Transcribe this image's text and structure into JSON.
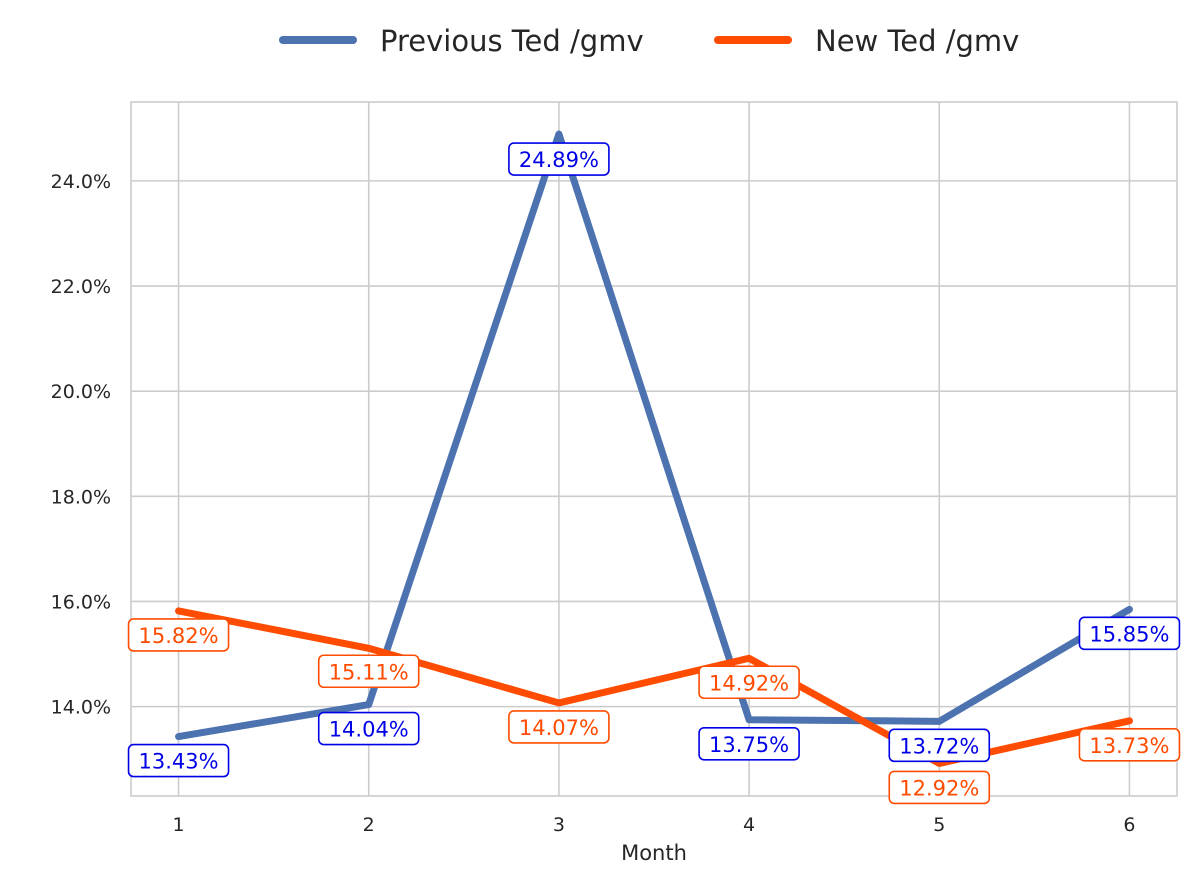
{
  "chart_data": {
    "type": "line",
    "xlabel": "Month",
    "ylabel": "",
    "x": [
      1,
      2,
      3,
      4,
      5,
      6
    ],
    "x_tick_labels": [
      "1",
      "2",
      "3",
      "4",
      "5",
      "6"
    ],
    "y_ticks": [
      14.0,
      16.0,
      18.0,
      20.0,
      22.0,
      24.0
    ],
    "y_tick_labels": [
      "14.0%",
      "16.0%",
      "18.0%",
      "20.0%",
      "22.0%",
      "24.0%"
    ],
    "xlim": [
      0.75,
      6.25
    ],
    "ylim": [
      12.3,
      25.5
    ],
    "grid": true,
    "legend_position": "top-center",
    "series": [
      {
        "name": "Previous Ted /gmv",
        "color": "#4c72b0",
        "label_color": "#0000e6",
        "values": [
          13.43,
          14.04,
          24.89,
          13.75,
          13.72,
          15.85
        ],
        "labels": [
          "13.43%",
          "14.04%",
          "24.89%",
          "13.75%",
          "13.72%",
          "15.85%"
        ]
      },
      {
        "name": "New Ted /gmv",
        "color": "#ff4c00",
        "label_color": "#ff4c00",
        "values": [
          15.82,
          15.11,
          14.07,
          14.92,
          12.92,
          13.73
        ],
        "labels": [
          "15.82%",
          "15.11%",
          "14.07%",
          "14.92%",
          "12.92%",
          "13.73%"
        ]
      }
    ]
  }
}
